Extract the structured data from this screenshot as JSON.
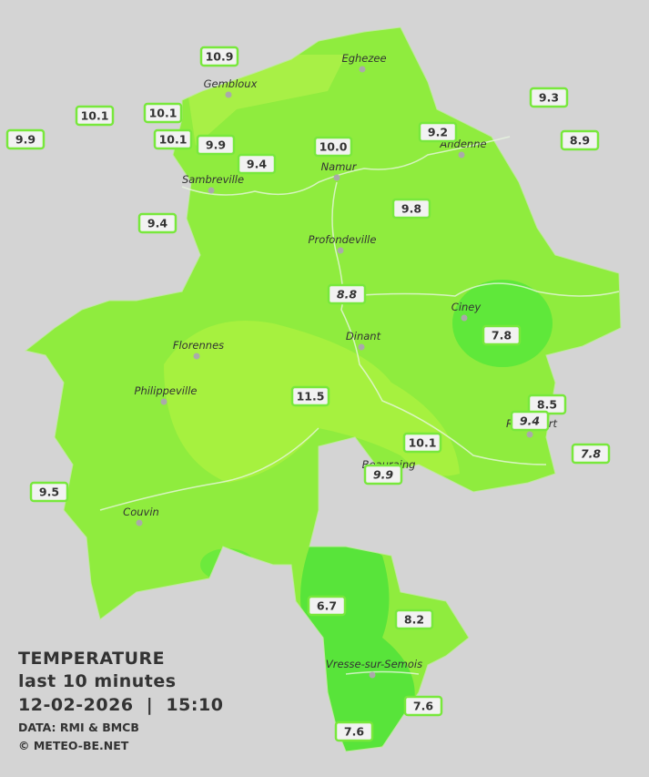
{
  "legend": {
    "title": "TEMPERATURE",
    "period": "last 10 minutes",
    "datetime": "12-02-2026  |  15:10",
    "source": "DATA: RMI & BMCB",
    "credit": "© METEO-BE.NET"
  },
  "cities": [
    {
      "name": "Eghezee"
    },
    {
      "name": "Gembloux"
    },
    {
      "name": "Andenne"
    },
    {
      "name": "Namur"
    },
    {
      "name": "Sambreville"
    },
    {
      "name": "Profondeville"
    },
    {
      "name": "Ciney"
    },
    {
      "name": "Dinant"
    },
    {
      "name": "Florennes"
    },
    {
      "name": "Philippeville"
    },
    {
      "name": "Rochefort"
    },
    {
      "name": "Beauraing"
    },
    {
      "name": "Couvin"
    },
    {
      "name": "Vresse-sur-Semois"
    }
  ],
  "stations": [
    {
      "value": "10.9"
    },
    {
      "value": "10.1"
    },
    {
      "value": "10.1"
    },
    {
      "value": "9.9"
    },
    {
      "value": "10.1"
    },
    {
      "value": "9.9"
    },
    {
      "value": "9.4"
    },
    {
      "value": "10.0"
    },
    {
      "value": "9.2"
    },
    {
      "value": "9.3"
    },
    {
      "value": "8.9"
    },
    {
      "value": "9.4"
    },
    {
      "value": "9.8"
    },
    {
      "value": "8.8",
      "italic": true
    },
    {
      "value": "7.8"
    },
    {
      "value": "11.5"
    },
    {
      "value": "8.5"
    },
    {
      "value": "9.4",
      "italic": true
    },
    {
      "value": "7.8",
      "italic": true
    },
    {
      "value": "10.1"
    },
    {
      "value": "9.9",
      "italic": true
    },
    {
      "value": "9.5"
    },
    {
      "value": "6.7"
    },
    {
      "value": "8.2"
    },
    {
      "value": "7.6"
    },
    {
      "value": "7.6"
    }
  ]
}
